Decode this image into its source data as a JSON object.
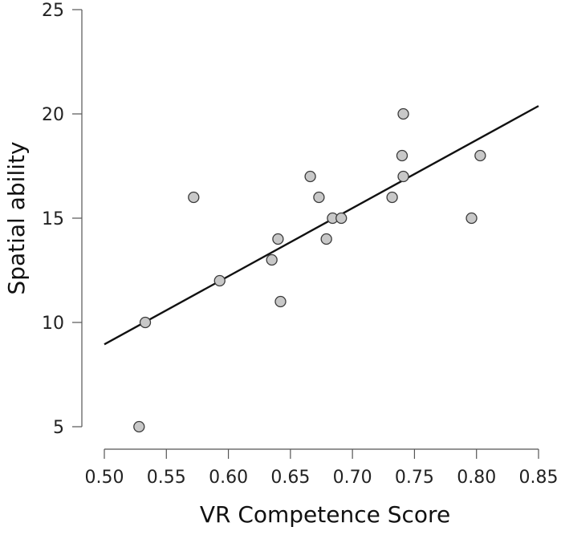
{
  "chart_data": {
    "type": "scatter",
    "title": "",
    "xlabel": "VR Competence Score",
    "ylabel": "Spatial ability",
    "xlim": [
      0.5,
      0.85
    ],
    "ylim": [
      5,
      25
    ],
    "x_ticks": [
      "0.50",
      "0.55",
      "0.60",
      "0.65",
      "0.70",
      "0.75",
      "0.80",
      "0.85"
    ],
    "y_ticks": [
      "5",
      "10",
      "15",
      "20",
      "25"
    ],
    "grid": false,
    "legend": "none",
    "point_color": "#c8c8c8",
    "point_edge_color": "#3a3a3a",
    "line_color": "#111111",
    "points": [
      {
        "x": 0.528,
        "y": 5
      },
      {
        "x": 0.533,
        "y": 10
      },
      {
        "x": 0.572,
        "y": 16
      },
      {
        "x": 0.593,
        "y": 12
      },
      {
        "x": 0.635,
        "y": 13
      },
      {
        "x": 0.64,
        "y": 14
      },
      {
        "x": 0.642,
        "y": 11
      },
      {
        "x": 0.666,
        "y": 17
      },
      {
        "x": 0.673,
        "y": 16
      },
      {
        "x": 0.679,
        "y": 14
      },
      {
        "x": 0.684,
        "y": 15
      },
      {
        "x": 0.691,
        "y": 15
      },
      {
        "x": 0.732,
        "y": 16
      },
      {
        "x": 0.74,
        "y": 18
      },
      {
        "x": 0.741,
        "y": 17
      },
      {
        "x": 0.741,
        "y": 20
      },
      {
        "x": 0.796,
        "y": 15
      },
      {
        "x": 0.803,
        "y": 18
      }
    ],
    "fit_line": {
      "x": [
        0.5,
        0.85
      ],
      "y": [
        8.95,
        20.38
      ]
    }
  }
}
